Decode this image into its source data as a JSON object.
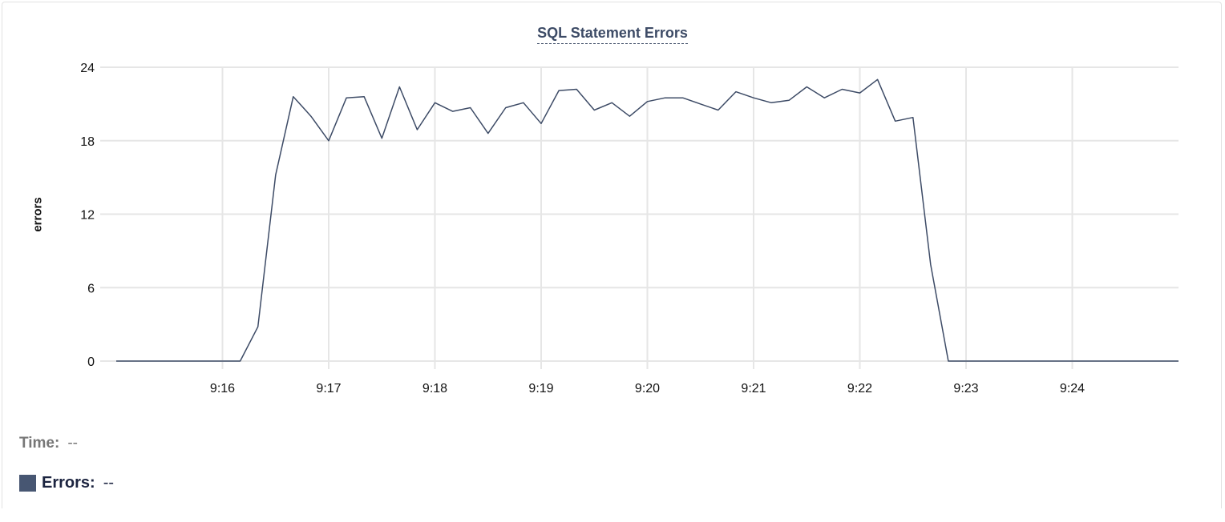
{
  "chart_data": {
    "type": "line",
    "title": "SQL Statement Errors",
    "xlabel": "",
    "ylabel": "errors",
    "ylim": [
      0,
      24
    ],
    "yticks": [
      "0",
      "6",
      "12",
      "18",
      "24"
    ],
    "xlim": [
      "9:15:00",
      "9:25:00"
    ],
    "xticks": [
      "9:16",
      "9:17",
      "9:18",
      "9:19",
      "9:20",
      "9:21",
      "9:22",
      "9:23",
      "9:24"
    ],
    "grid": true,
    "series_color": "#3d4b66",
    "series": [
      {
        "name": "Errors",
        "x_start": "9:15:00",
        "x_step_seconds": 10,
        "values": [
          0,
          0,
          0,
          0,
          0,
          0,
          0,
          0,
          2.8,
          15.2,
          21.6,
          20.0,
          18.0,
          21.5,
          21.6,
          18.2,
          22.4,
          18.9,
          21.1,
          20.4,
          20.7,
          18.6,
          20.7,
          21.1,
          19.4,
          22.1,
          22.2,
          20.5,
          21.1,
          20.0,
          21.2,
          21.5,
          21.5,
          21.0,
          20.5,
          22.0,
          21.5,
          21.1,
          21.3,
          22.4,
          21.5,
          22.2,
          21.9,
          23.0,
          19.6,
          19.9,
          7.9,
          0,
          0,
          0,
          0,
          0,
          0,
          0,
          0,
          0,
          0,
          0,
          0,
          0,
          0
        ]
      }
    ]
  },
  "legend": {
    "time_label": "Time:",
    "time_value": "--",
    "errors_label": "Errors:",
    "errors_value": "--",
    "errors_color": "#475672"
  }
}
